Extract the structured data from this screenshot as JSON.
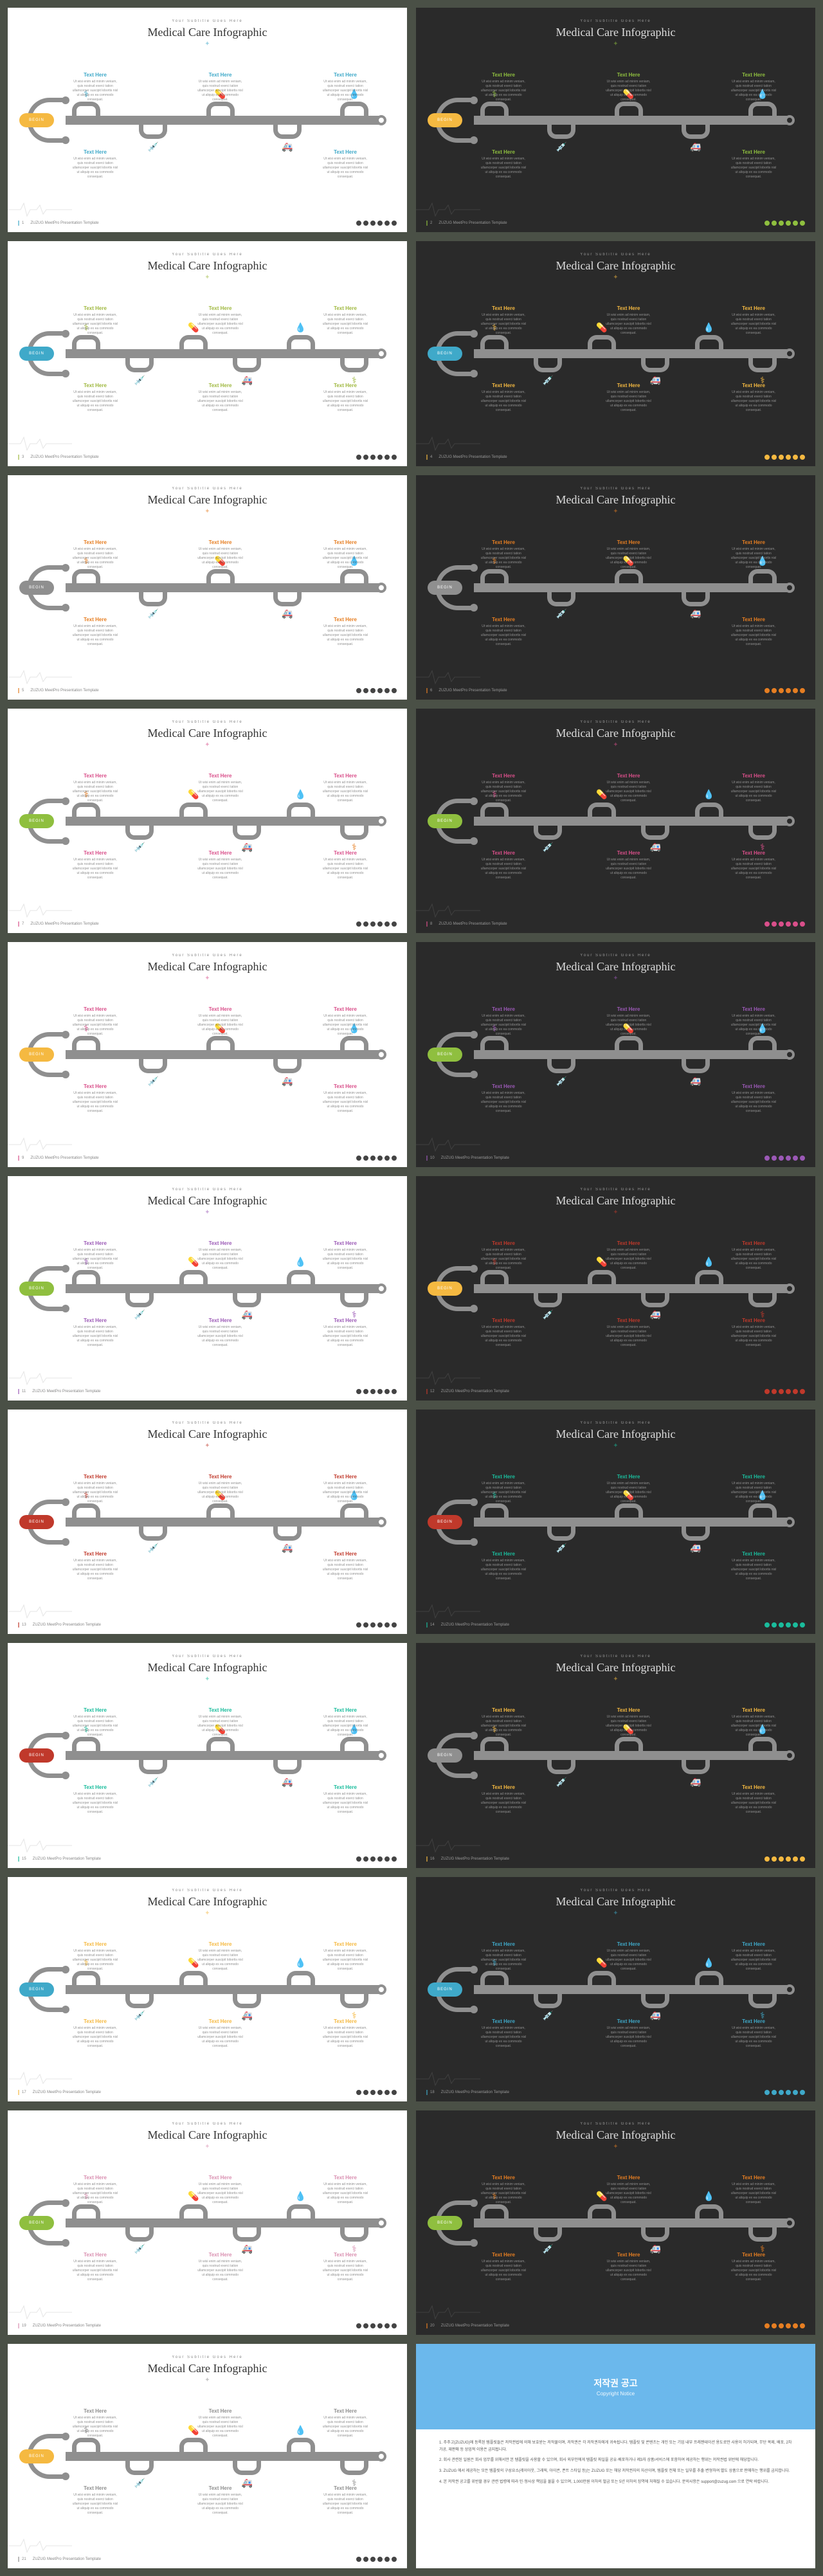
{
  "common": {
    "subtitle": "Your Subtitle Goes Here",
    "title": "Medical Care Infographic",
    "divider": "✦",
    "footer_text": "ZUZUG MeetPro Presentation Template",
    "label_heading": "Text Here",
    "label_body": "Ut wisi enim ad minim veniam, quis nostrud exerci tation ullamcorper suscipit lobortis nisl ut aliquip ex ea commodo consequat.",
    "badge_text": "BEGIN",
    "rail_color": "#8f8f8f",
    "icons": [
      "⚕",
      "💉",
      "💊",
      "🚑",
      "💧"
    ]
  },
  "slides": [
    {
      "theme": "light",
      "page": "1",
      "bumps": 5,
      "badge_color": "#f5b941",
      "accent": "#3fa9c9",
      "dot_color": "#444444",
      "icon_colors": [
        "#3fa9c9",
        "#3fa9c9",
        "#3fa9c9",
        "#3fa9c9",
        "#3fa9c9"
      ]
    },
    {
      "theme": "dark",
      "page": "2",
      "bumps": 5,
      "badge_color": "#f5b941",
      "accent": "#8fbf3f",
      "dot_color": "#8fbf3f",
      "icon_colors": [
        "#8fbf3f",
        "#8fbf3f",
        "#8fbf3f",
        "#8fbf3f",
        "#8fbf3f"
      ]
    },
    {
      "theme": "light",
      "page": "3",
      "bumps": 6,
      "badge_color": "#3fa9c9",
      "accent": "#9fb83f",
      "dot_color": "#444444",
      "icon_colors": [
        "#9fb83f",
        "#9fb83f",
        "#9fb83f",
        "#9fb83f",
        "#9fb83f",
        "#9fb83f"
      ]
    },
    {
      "theme": "dark",
      "page": "4",
      "bumps": 6,
      "badge_color": "#3fa9c9",
      "accent": "#f5b941",
      "dot_color": "#f5b941",
      "icon_colors": [
        "#f5b941",
        "#f5b941",
        "#f5b941",
        "#f5b941",
        "#f5b941",
        "#f5b941"
      ]
    },
    {
      "theme": "light",
      "page": "5",
      "bumps": 5,
      "badge_color": "#8f8f8f",
      "accent": "#e67e22",
      "dot_color": "#444444",
      "icon_colors": [
        "#e67e22",
        "#e67e22",
        "#e67e22",
        "#e67e22",
        "#e67e22"
      ]
    },
    {
      "theme": "dark",
      "page": "6",
      "bumps": 5,
      "badge_color": "#8f8f8f",
      "accent": "#e67e22",
      "dot_color": "#e67e22",
      "icon_colors": [
        "#e67e22",
        "#e67e22",
        "#e67e22",
        "#e67e22",
        "#e67e22"
      ]
    },
    {
      "theme": "light",
      "page": "7",
      "bumps": 6,
      "badge_color": "#8fbf3f",
      "accent": "#d94f8a",
      "dot_color": "#444444",
      "icon_colors": [
        "#e67e22",
        "#d94f8a",
        "#8fbf3f",
        "#3fa9c9",
        "#d94f8a",
        "#e67e22"
      ]
    },
    {
      "theme": "dark",
      "page": "8",
      "bumps": 6,
      "badge_color": "#8fbf3f",
      "accent": "#d94f8a",
      "dot_color": "#d94f8a",
      "icon_colors": [
        "#d94f8a",
        "#d94f8a",
        "#d94f8a",
        "#d94f8a",
        "#d94f8a",
        "#d94f8a"
      ]
    },
    {
      "theme": "light",
      "page": "9",
      "bumps": 5,
      "badge_color": "#f5b941",
      "accent": "#d94f8a",
      "dot_color": "#444444",
      "icon_colors": [
        "#d94f8a",
        "#d94f8a",
        "#d94f8a",
        "#d94f8a",
        "#d94f8a"
      ]
    },
    {
      "theme": "dark",
      "page": "10",
      "bumps": 5,
      "badge_color": "#8fbf3f",
      "accent": "#9b59b6",
      "dot_color": "#9b59b6",
      "icon_colors": [
        "#9b59b6",
        "#9b59b6",
        "#9b59b6",
        "#9b59b6",
        "#9b59b6"
      ]
    },
    {
      "theme": "light",
      "page": "11",
      "bumps": 6,
      "badge_color": "#8fbf3f",
      "accent": "#9b59b6",
      "dot_color": "#444444",
      "icon_colors": [
        "#9b59b6",
        "#9b59b6",
        "#9b59b6",
        "#9b59b6",
        "#9b59b6",
        "#9b59b6"
      ]
    },
    {
      "theme": "dark",
      "page": "12",
      "bumps": 6,
      "badge_color": "#f5b941",
      "accent": "#c0392b",
      "dot_color": "#c0392b",
      "icon_colors": [
        "#c0392b",
        "#c0392b",
        "#c0392b",
        "#c0392b",
        "#c0392b",
        "#c0392b"
      ]
    },
    {
      "theme": "light",
      "page": "13",
      "bumps": 5,
      "badge_color": "#c0392b",
      "accent": "#c0392b",
      "dot_color": "#444444",
      "icon_colors": [
        "#c0392b",
        "#c0392b",
        "#c0392b",
        "#c0392b",
        "#c0392b"
      ]
    },
    {
      "theme": "dark",
      "page": "14",
      "bumps": 5,
      "badge_color": "#c0392b",
      "accent": "#1abc9c",
      "dot_color": "#1abc9c",
      "icon_colors": [
        "#1abc9c",
        "#1abc9c",
        "#1abc9c",
        "#1abc9c",
        "#1abc9c"
      ]
    },
    {
      "theme": "light",
      "page": "15",
      "bumps": 5,
      "badge_color": "#c0392b",
      "accent": "#1abc9c",
      "dot_color": "#444444",
      "icon_colors": [
        "#1abc9c",
        "#1abc9c",
        "#1abc9c",
        "#1abc9c",
        "#1abc9c"
      ]
    },
    {
      "theme": "dark",
      "page": "16",
      "bumps": 5,
      "badge_color": "#8f8f8f",
      "accent": "#f5b941",
      "dot_color": "#f5b941",
      "icon_colors": [
        "#f5b941",
        "#f5b941",
        "#f5b941",
        "#f5b941",
        "#f5b941"
      ]
    },
    {
      "theme": "light",
      "page": "17",
      "bumps": 6,
      "badge_color": "#3fa9c9",
      "accent": "#f5b941",
      "dot_color": "#444444",
      "icon_colors": [
        "#f5b941",
        "#f5b941",
        "#f5b941",
        "#f5b941",
        "#f5b941",
        "#f5b941"
      ]
    },
    {
      "theme": "dark",
      "page": "18",
      "bumps": 6,
      "badge_color": "#3fa9c9",
      "accent": "#3fa9c9",
      "dot_color": "#3fa9c9",
      "icon_colors": [
        "#3fa9c9",
        "#3fa9c9",
        "#3fa9c9",
        "#3fa9c9",
        "#3fa9c9",
        "#3fa9c9"
      ]
    },
    {
      "theme": "light",
      "page": "19",
      "bumps": 6,
      "badge_color": "#8fbf3f",
      "accent": "#d98fb0",
      "dot_color": "#444444",
      "icon_colors": [
        "#d98fb0",
        "#d98fb0",
        "#d98fb0",
        "#d98fb0",
        "#d98fb0",
        "#d98fb0"
      ]
    },
    {
      "theme": "dark",
      "page": "20",
      "bumps": 6,
      "badge_color": "#8fbf3f",
      "accent": "#e67e22",
      "dot_color": "#e67e22",
      "icon_colors": [
        "#e67e22",
        "#e67e22",
        "#e67e22",
        "#e67e22",
        "#e67e22",
        "#e67e22"
      ]
    },
    {
      "theme": "light",
      "page": "21",
      "bumps": 6,
      "badge_color": "#f5b941",
      "accent": "#8f8f8f",
      "dot_color": "#444444",
      "icon_colors": [
        "#8f8f8f",
        "#8f8f8f",
        "#8f8f8f",
        "#8f8f8f",
        "#8f8f8f",
        "#8f8f8f"
      ]
    }
  ],
  "copyright": {
    "header_bg": "#6bb8ec",
    "title_kr": "저작권 공고",
    "title_en": "Copyright Notice",
    "paragraphs": [
      "1. 주주고(ZUZUG)에 등록된 템플릿들은 저작권법에 의해 보호받는 저작물이며, 저작권은 각 저작권자에게 귀속됩니다. 템플릿 및 콘텐츠는 개인 또는 기업 내부 프레젠테이션 용도로만 사용이 허가되며, 무단 복제, 배포, 2차 가공, 재판매 등 상업적 이용은 금지됩니다.",
      "2. 회사 관련된 일원은 회사 업무를 위해서만 본 템플릿을 사용할 수 있으며, 회사 외부인에게 템플릿 파일을 공유·배포하거나 제3자 상품/서비스에 포함하여 제공하는 행위는 저작권법 위반에 해당합니다.",
      "3. ZUZUG 에서 제공하는 모든 템플릿의 구성요소(레이아웃, 그래픽, 아이콘, 폰트 스타일 등)는 ZUZUG 또는 해당 저작권자의 자산이며, 템플릿 전체 또는 일부를 추출·변형하여 별도 상품으로 판매하는 행위를 금지합니다.",
      "4. 본 저작권 공고를 위반할 경우 관련 법령에 따라 민·형사상 책임을 물을 수 있으며, 1,000만원 이하의 벌금 또는 5년 이하의 징역에 처해질 수 있습니다. 문의사항은 support@zuzug.com 으로 연락 바랍니다."
    ]
  }
}
